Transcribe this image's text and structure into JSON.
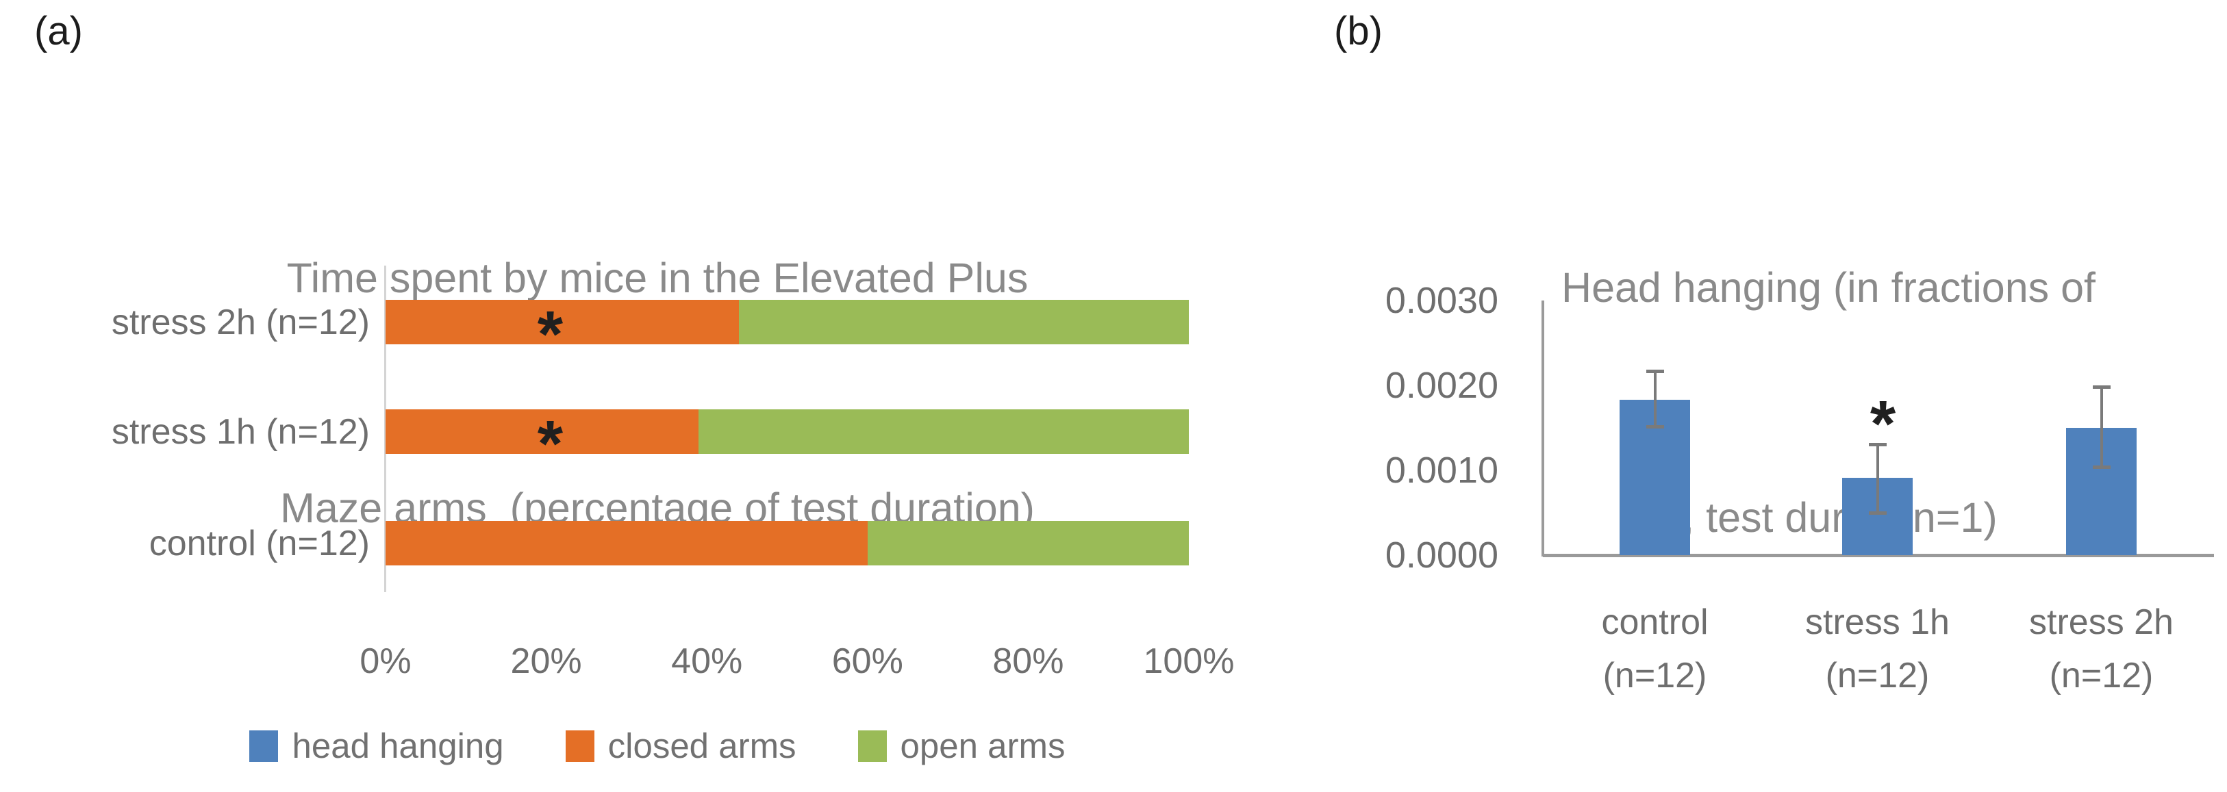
{
  "panels": {
    "a": {
      "label": "(a)"
    },
    "b": {
      "label": "(b)"
    }
  },
  "chart_data": [
    {
      "id": "epm-time-in-arms",
      "type": "bar",
      "orientation": "horizontal",
      "stacked": true,
      "title": "Time spent by mice in the Elevated Plus Maze arms (percentage of test duration)",
      "title_lines": [
        "Time spent by mice in the Elevated Plus",
        "Maze arms  (percentage of test duration)"
      ],
      "categories": [
        "stress 2h (n=12)",
        "stress 1h (n=12)",
        "control (n=12)"
      ],
      "series": [
        {
          "name": "head hanging",
          "color": "#4F81BC",
          "values": [
            0,
            0,
            0
          ]
        },
        {
          "name": "closed arms",
          "color": "#E46F26",
          "values": [
            44,
            39,
            60
          ]
        },
        {
          "name": "open arms",
          "color": "#9ABB57",
          "values": [
            56,
            61,
            40
          ]
        }
      ],
      "x_ticks": [
        "0%",
        "20%",
        "40%",
        "60%",
        "80%",
        "100%"
      ],
      "xlim": [
        0,
        100
      ],
      "unit": "%",
      "grid": false,
      "legend_position": "bottom",
      "annotations": [
        {
          "text": "*",
          "category_index": 0,
          "x_pct": 20.5
        },
        {
          "text": "*",
          "category_index": 1,
          "x_pct": 20.5
        }
      ]
    },
    {
      "id": "head-hanging-fraction",
      "type": "bar",
      "orientation": "vertical",
      "title": "Head hanging (in fractions of 1, test duration=1)",
      "title_lines": [
        "Head hanging (in fractions of",
        "1, test duration=1)"
      ],
      "categories": [
        "control (n=12)",
        "stress 1h (n=12)",
        "stress 2h (n=12)"
      ],
      "category_lines": [
        [
          "control",
          "(n=12)"
        ],
        [
          "stress 1h",
          "(n=12)"
        ],
        [
          "stress 2h",
          "(n=12)"
        ]
      ],
      "values": [
        0.00183,
        0.00091,
        0.0015
      ],
      "error_low": [
        0.00152,
        0.0005,
        0.00104
      ],
      "error_high": [
        0.00217,
        0.00131,
        0.00198
      ],
      "bar_color": "#4F81BC",
      "error_color": "#7A7A7A",
      "y_ticks": [
        "0.0030",
        "0.0020",
        "0.0010",
        "0.0000"
      ],
      "ylim": [
        0,
        0.003
      ],
      "grid": false,
      "annotations": [
        {
          "text": "*",
          "category_index": 1
        }
      ]
    }
  ]
}
